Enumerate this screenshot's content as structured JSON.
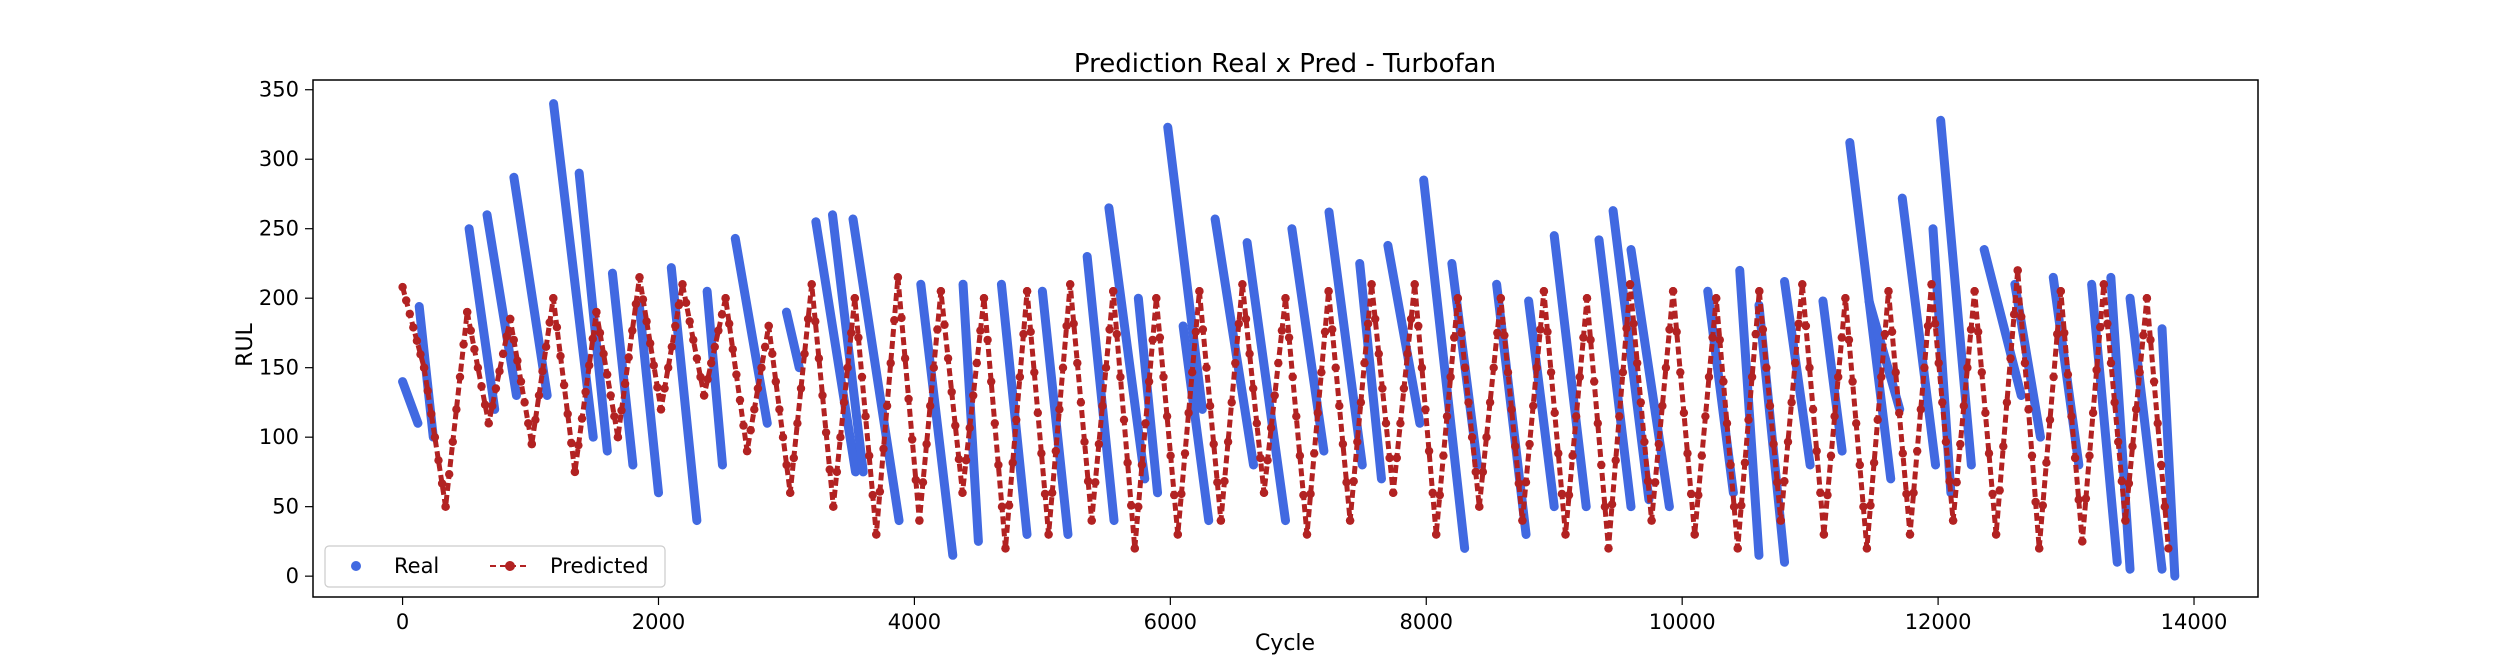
{
  "chart_data": {
    "type": "line",
    "title": "Prediction Real x Pred - Turbofan",
    "xlabel": "Cycle",
    "ylabel": "RUL",
    "xlim": [
      -700,
      14500
    ],
    "ylim": [
      -15,
      357
    ],
    "xticks": [
      0,
      2000,
      4000,
      6000,
      8000,
      10000,
      12000,
      14000
    ],
    "yticks": [
      0,
      50,
      100,
      150,
      200,
      250,
      300,
      350
    ],
    "grid": false,
    "legend": {
      "placement": "lower-left",
      "columns": 2
    },
    "series": [
      {
        "name": "Real",
        "style": "markers",
        "color": "#4169e1",
        "segments": [
          [
            0,
            140,
            120,
            110
          ],
          [
            130,
            194,
            240,
            100
          ],
          [
            520,
            250,
            720,
            120
          ],
          [
            660,
            260,
            890,
            130
          ],
          [
            870,
            287,
            1130,
            130
          ],
          [
            1180,
            340,
            1490,
            100
          ],
          [
            1380,
            290,
            1600,
            90
          ],
          [
            1640,
            218,
            1800,
            80
          ],
          [
            1850,
            195,
            2000,
            60
          ],
          [
            2100,
            222,
            2300,
            40
          ],
          [
            2380,
            205,
            2500,
            80
          ],
          [
            2600,
            243,
            2850,
            110
          ],
          [
            3000,
            190,
            3100,
            150
          ],
          [
            3230,
            255,
            3540,
            75
          ],
          [
            3360,
            260,
            3600,
            75
          ],
          [
            3520,
            257,
            3880,
            40
          ],
          [
            4050,
            210,
            4300,
            15
          ],
          [
            4380,
            210,
            4500,
            25
          ],
          [
            4680,
            210,
            4880,
            30
          ],
          [
            5000,
            205,
            5200,
            30
          ],
          [
            5350,
            230,
            5560,
            40
          ],
          [
            5520,
            265,
            5800,
            70
          ],
          [
            5750,
            200,
            5900,
            60
          ],
          [
            5980,
            323,
            6250,
            120
          ],
          [
            6100,
            180,
            6300,
            40
          ],
          [
            6350,
            257,
            6650,
            80
          ],
          [
            6600,
            240,
            6900,
            40
          ],
          [
            6950,
            250,
            7200,
            90
          ],
          [
            7240,
            262,
            7500,
            80
          ],
          [
            7480,
            225,
            7650,
            70
          ],
          [
            7700,
            238,
            7950,
            110
          ],
          [
            7980,
            285,
            8300,
            20
          ],
          [
            8200,
            225,
            8400,
            80
          ],
          [
            8550,
            210,
            8780,
            30
          ],
          [
            8800,
            198,
            9000,
            50
          ],
          [
            9000,
            245,
            9250,
            50
          ],
          [
            9350,
            242,
            9600,
            50
          ],
          [
            9460,
            263,
            9740,
            55
          ],
          [
            9600,
            235,
            9900,
            50
          ],
          [
            10200,
            205,
            10400,
            60
          ],
          [
            10450,
            220,
            10600,
            15
          ],
          [
            10600,
            195,
            10800,
            10
          ],
          [
            10800,
            212,
            11000,
            80
          ],
          [
            11100,
            198,
            11250,
            90
          ],
          [
            11310,
            312,
            11630,
            70
          ],
          [
            11460,
            198,
            11700,
            120
          ],
          [
            11720,
            272,
            11980,
            80
          ],
          [
            11960,
            250,
            12100,
            60
          ],
          [
            12020,
            328,
            12260,
            80
          ],
          [
            12360,
            235,
            12650,
            130
          ],
          [
            12600,
            210,
            12800,
            100
          ],
          [
            12900,
            215,
            13100,
            80
          ],
          [
            13200,
            210,
            13400,
            10
          ],
          [
            13350,
            215,
            13500,
            5
          ],
          [
            13500,
            200,
            13750,
            5
          ],
          [
            13750,
            178,
            13850,
            0
          ]
        ]
      },
      {
        "name": "Predicted",
        "style": "dashed-line-markers",
        "color": "#b22222",
        "x_range": [
          0,
          13800
        ],
        "y_range": [
          20,
          220
        ],
        "description_values": [
          208,
          150,
          50,
          190,
          110,
          185,
          95,
          200,
          75,
          190,
          100,
          215,
          120,
          210,
          130,
          200,
          90,
          180,
          60,
          210,
          50,
          200,
          30,
          215,
          40,
          205,
          60,
          200,
          20,
          205,
          30,
          210,
          40,
          205,
          20,
          200,
          30,
          205,
          40,
          210,
          60,
          200,
          30,
          205,
          40,
          210,
          60,
          210,
          30,
          200,
          50,
          200,
          40,
          205,
          30,
          200,
          20,
          210,
          40,
          205,
          30,
          200,
          20,
          205,
          40,
          210,
          30,
          200,
          20,
          205,
          30,
          210,
          40,
          205,
          30,
          220,
          20,
          205,
          25,
          210,
          40,
          200,
          20
        ]
      }
    ]
  }
}
